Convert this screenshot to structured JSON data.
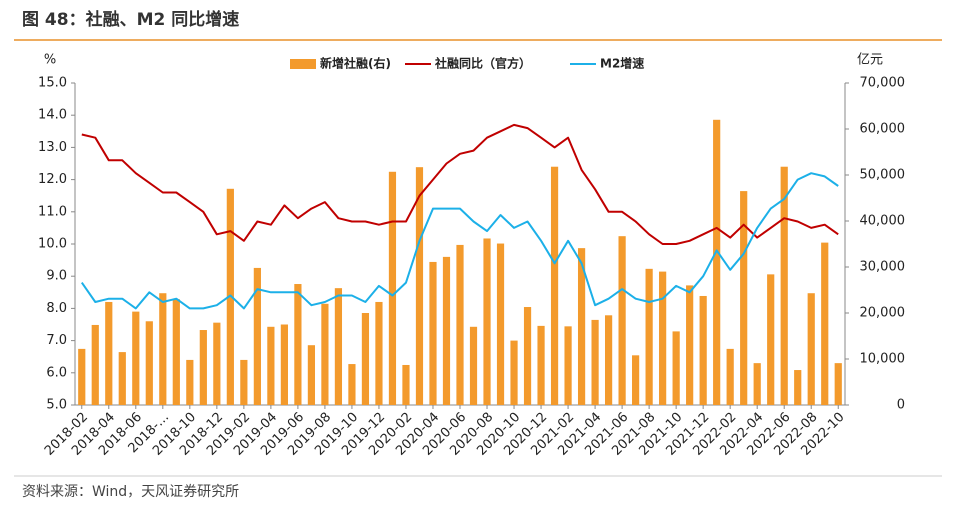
{
  "title": "图 48：社融、M2 同比增速",
  "source": "资料来源：Wind，天风证券研究所",
  "chart_data": {
    "type": "bar",
    "y_unit": "%",
    "y2_unit": "亿元",
    "categories": [
      "2018-02",
      null,
      "2018-04",
      null,
      "2018-06",
      null,
      "2018-…",
      null,
      "2018-10",
      null,
      "2018-12",
      null,
      "2019-02",
      null,
      "2019-04",
      null,
      "2019-06",
      null,
      "2019-08",
      null,
      "2019-10",
      null,
      "2019-12",
      null,
      "2020-02",
      null,
      "2020-04",
      null,
      "2020-06",
      null,
      "2020-08",
      null,
      "2020-10",
      null,
      "2020-12",
      null,
      "2021-02",
      null,
      "2021-04",
      null,
      "2021-06",
      null,
      "2021-08",
      null,
      "2021-10",
      null,
      "2021-12",
      null,
      "2022-02",
      null,
      "2022-04",
      null,
      "2022-06",
      null,
      "2022-08",
      null,
      "2022-10"
    ],
    "series": [
      {
        "name": "新增社融(右)",
        "type": "bar",
        "axis": "y2",
        "color": "#F39A2C",
        "values": [
          12200,
          17400,
          22400,
          11500,
          20300,
          18200,
          24300,
          23000,
          9800,
          16300,
          17900,
          47000,
          9800,
          29800,
          17000,
          17500,
          26300,
          13000,
          22000,
          25400,
          8900,
          20000,
          22400,
          50700,
          8700,
          51700,
          31100,
          32200,
          34800,
          17000,
          36200,
          35100,
          14000,
          21300,
          17200,
          51800,
          17100,
          34100,
          18500,
          19500,
          36700,
          10800,
          29600,
          29000,
          16000,
          26000,
          23700,
          62000,
          12200,
          46500,
          9100,
          28400,
          51800,
          7600,
          24300,
          35300,
          9100
        ]
      },
      {
        "name": "社融同比（官方）",
        "type": "line",
        "color": "#C00000",
        "values": [
          13.4,
          13.3,
          12.6,
          12.6,
          12.2,
          11.9,
          11.6,
          11.6,
          11.3,
          11.0,
          10.3,
          10.4,
          10.1,
          10.7,
          10.6,
          11.2,
          10.8,
          11.1,
          11.3,
          10.8,
          10.7,
          10.7,
          10.6,
          10.7,
          10.7,
          11.5,
          12.0,
          12.5,
          12.8,
          12.9,
          13.3,
          13.5,
          13.7,
          13.6,
          13.3,
          13.0,
          13.3,
          12.3,
          11.7,
          11.0,
          11.0,
          10.7,
          10.3,
          10.0,
          10.0,
          10.1,
          10.3,
          10.5,
          10.2,
          10.6,
          10.2,
          10.5,
          10.8,
          10.7,
          10.5,
          10.6,
          10.3
        ]
      },
      {
        "name": "M2增速",
        "type": "line",
        "color": "#1CB0E8",
        "values": [
          8.8,
          8.2,
          8.3,
          8.3,
          8.0,
          8.5,
          8.2,
          8.3,
          8.0,
          8.0,
          8.1,
          8.4,
          8.0,
          8.6,
          8.5,
          8.5,
          8.5,
          8.1,
          8.2,
          8.4,
          8.4,
          8.2,
          8.7,
          8.4,
          8.8,
          10.1,
          11.1,
          11.1,
          11.1,
          10.7,
          10.4,
          10.9,
          10.5,
          10.7,
          10.1,
          9.4,
          10.1,
          9.4,
          8.1,
          8.3,
          8.6,
          8.3,
          8.2,
          8.3,
          8.7,
          8.5,
          9.0,
          9.8,
          9.2,
          9.7,
          10.5,
          11.1,
          11.4,
          12.0,
          12.2,
          12.1,
          11.8
        ]
      }
    ],
    "ylim": [
      5,
      15
    ],
    "yticks": [
      {
        "value": 5,
        "label": "5.0"
      },
      {
        "value": 6,
        "label": "6.0"
      },
      {
        "value": 7,
        "label": "7.0"
      },
      {
        "value": 8,
        "label": "8.0"
      },
      {
        "value": 9,
        "label": "9.0"
      },
      {
        "value": 10,
        "label": "10.0"
      },
      {
        "value": 11,
        "label": "11.0"
      },
      {
        "value": 12,
        "label": "12.0"
      },
      {
        "value": 13,
        "label": "13.0"
      },
      {
        "value": 14,
        "label": "14.0"
      },
      {
        "value": 15,
        "label": "15.0"
      }
    ],
    "y2lim": [
      0,
      70000
    ],
    "y2ticks": [
      0,
      {
        "value": 10000,
        "label": "10,000"
      },
      {
        "value": 20000,
        "label": "20,000"
      },
      {
        "value": 30000,
        "label": "30,000"
      },
      {
        "value": 40000,
        "label": "40,000"
      },
      {
        "value": 50000,
        "label": "50,000"
      },
      {
        "value": 60000,
        "label": "60,000"
      },
      {
        "value": 70000,
        "label": "70,000"
      }
    ],
    "legend": "top",
    "grid": false
  }
}
